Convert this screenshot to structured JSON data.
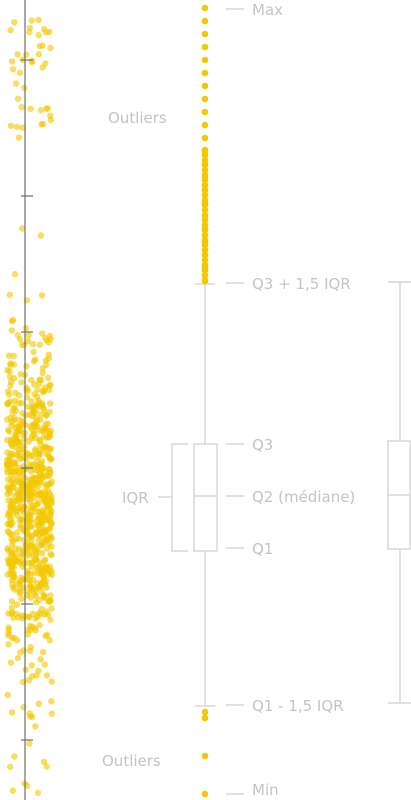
{
  "labels": {
    "max": "Max",
    "outliers_top": "Outliers",
    "q3_whisker": "Q3 + 1,5 IQR",
    "q3": "Q3",
    "iqr": "IQR",
    "q2": "Q2 (médiane)",
    "q1": "Q1",
    "q1_whisker": "Q1 - 1,5 IQR",
    "outliers_bottom": "Outliers",
    "min": "Min"
  },
  "colors": {
    "points": "#f2c800",
    "box_lines": "#cfcfcf",
    "labels": "#c4c4c4",
    "axis": "#6f6f6f"
  }
}
